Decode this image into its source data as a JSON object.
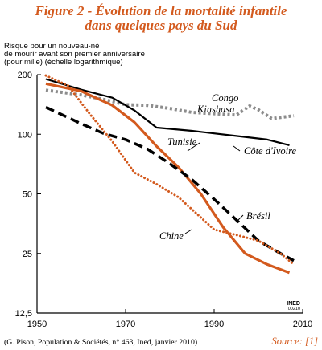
{
  "title_line1": "Figure 2 - Évolution de la mortalité infantile",
  "title_line2": "dans quelques pays du Sud",
  "ylabel_lines": [
    "Risque pour un nouveau-né",
    "de mourir avant son premier anniversaire",
    "(pour mille) (échelle logarithmique)"
  ],
  "credit_line1": "INED",
  "credit_line2": "00210",
  "footer_source": "(G. Pison, Population & Sociétés, n° 463, Ined, janvier 2010)",
  "source_label": "Source: [1]",
  "colors": {
    "accent": "#d35a1e",
    "grey": "#8c8c8c",
    "black": "#000000"
  },
  "chart_data": {
    "type": "line",
    "title": "Figure 2 - Évolution de la mortalité infantile dans quelques pays du Sud",
    "ylabel": "Risque pour un nouveau-né de mourir avant son premier anniversaire (pour mille) (échelle logarithmique)",
    "xlabel": "",
    "yscale": "log",
    "xlim": [
      1950,
      2010
    ],
    "ylim": [
      12.5,
      200
    ],
    "xticks": [
      1950,
      1970,
      1990,
      2010
    ],
    "yticks": [
      {
        "value": 12.5,
        "label": "12,5"
      },
      {
        "value": 25,
        "label": "25"
      },
      {
        "value": 50,
        "label": "50"
      },
      {
        "value": 100,
        "label": "100"
      },
      {
        "value": 200,
        "label": "200"
      }
    ],
    "grid": false,
    "series": [
      {
        "name": "Congo Kinshasa",
        "color": "#8c8c8c",
        "style": "dotted-thick",
        "points": [
          [
            1952,
            167
          ],
          [
            1960,
            158
          ],
          [
            1965,
            150
          ],
          [
            1970,
            141
          ],
          [
            1975,
            140
          ],
          [
            1980,
            135
          ],
          [
            1985,
            129
          ],
          [
            1990,
            127
          ],
          [
            1995,
            125
          ],
          [
            1998,
            139
          ],
          [
            2000,
            133
          ],
          [
            2003,
            120
          ],
          [
            2008,
            124
          ]
        ]
      },
      {
        "name": "Côte d'Ivoire",
        "color": "#000000",
        "style": "solid",
        "points": [
          [
            1952,
            190
          ],
          [
            1960,
            168
          ],
          [
            1967,
            153
          ],
          [
            1972,
            132
          ],
          [
            1977,
            108
          ],
          [
            1985,
            104
          ],
          [
            1995,
            98
          ],
          [
            2002,
            94
          ],
          [
            2007,
            88
          ]
        ]
      },
      {
        "name": "Tunisie",
        "color": "#d35a1e",
        "style": "solid-thick",
        "points": [
          [
            1952,
            180
          ],
          [
            1960,
            165
          ],
          [
            1967,
            140
          ],
          [
            1972,
            115
          ],
          [
            1977,
            87
          ],
          [
            1982,
            68
          ],
          [
            1987,
            50
          ],
          [
            1992,
            34
          ],
          [
            1997,
            25
          ],
          [
            2002,
            22
          ],
          [
            2007,
            20
          ]
        ]
      },
      {
        "name": "Brésil",
        "color": "#000000",
        "style": "dashed",
        "points": [
          [
            1952,
            137
          ],
          [
            1960,
            113
          ],
          [
            1965,
            101
          ],
          [
            1970,
            94
          ],
          [
            1975,
            84
          ],
          [
            1980,
            71
          ],
          [
            1985,
            59
          ],
          [
            1990,
            47
          ],
          [
            1995,
            37
          ],
          [
            2000,
            29
          ],
          [
            2005,
            25
          ],
          [
            2008,
            23
          ]
        ]
      },
      {
        "name": "Chine",
        "color": "#d35a1e",
        "style": "dotted",
        "points": [
          [
            1952,
            198
          ],
          [
            1957,
            176
          ],
          [
            1962,
            126
          ],
          [
            1967,
            92
          ],
          [
            1972,
            64
          ],
          [
            1977,
            56
          ],
          [
            1982,
            48
          ],
          [
            1987,
            38
          ],
          [
            1990,
            33
          ],
          [
            1995,
            31
          ],
          [
            2000,
            29
          ],
          [
            2005,
            25
          ],
          [
            2008,
            22
          ]
        ]
      }
    ],
    "annotations": [
      "Congo",
      "Kinshasa",
      "Côte d'Ivoire",
      "Tunisie",
      "Brésil",
      "Chine"
    ]
  }
}
